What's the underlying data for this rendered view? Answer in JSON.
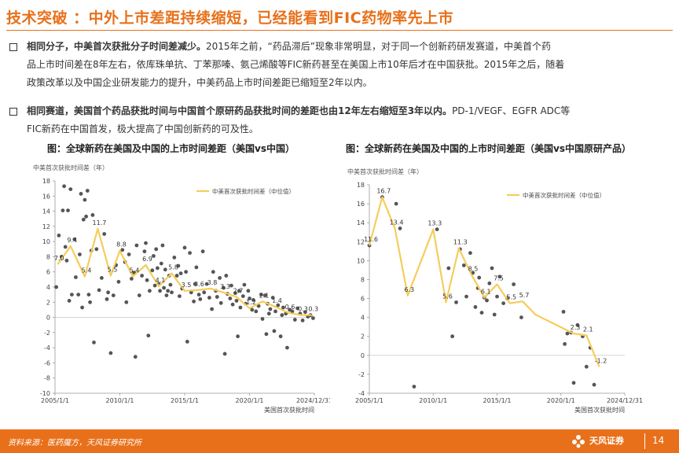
{
  "slide": {
    "title": "技术突破 ：中外上市差距持续缩短，已经能看到FIC药物率先上市",
    "bullets": [
      {
        "bold": "相同分子，中美首次获批分子时间差减少。",
        "line1": "2015年之前，“药品滞后”现象非常明显，对于同一个创新药研发赛道，中美首个药",
        "line2": "品上市时间差在8年左右，依库珠单抗、丁苯那嗪、氨己烯酸等FIC新药甚至在美国上市10年后才在中国获批。2015年之后，随着",
        "line3": "政策改革以及中国企业研发能力的提升，中美药品上市时间差距已缩短至2年以内。"
      },
      {
        "bold": "相同赛道，美国首个药品获批时间与中国首个原研药品获批时间的差距也由12年左右缩短至3年以内。",
        "line1": "PD-1/VEGF、EGFR ADC等",
        "line2": "FIC新药在中国首发，极大提高了中国创新药的可及性。"
      }
    ],
    "source": "资料来源：医药魔方，天风证券研究所",
    "brand": "天风证券",
    "page": "14"
  },
  "colors": {
    "accent": "#e8701a",
    "line": "#f5cd5b",
    "dots": "#555555"
  },
  "chart_data": [
    {
      "type": "scatter",
      "title": "图：全球新药在美国及中国的上市时间差距（美国vs中国）",
      "ylabel": "中美首次获批时间差（年）",
      "xlabel": "美国首次获批时间",
      "xticks": [
        "2005/1/1",
        "2010/1/1",
        "2015/1/1",
        "2020/1/1",
        "2024/12/31"
      ],
      "xlim": [
        2005.0,
        2025.0
      ],
      "yticks": [
        -10,
        -8,
        -6,
        -4,
        -2,
        0,
        2,
        4,
        6,
        8,
        10,
        12,
        14,
        16,
        18
      ],
      "ylim": [
        -10,
        18
      ],
      "legend": "中美首次获批时间差（中位值）",
      "legend_position": "top-right",
      "median_series": {
        "x": [
          2005.2,
          2006.2,
          2007.3,
          2008.3,
          2009.3,
          2010.0,
          2011.0,
          2012.0,
          2013.0,
          2014.0,
          2015.0,
          2016.0,
          2017.0,
          2018.0,
          2019.0,
          2020.0,
          2021.0,
          2022.0,
          2023.0,
          2024.0,
          2024.8
        ],
        "y": [
          7.0,
          9.4,
          5.4,
          11.7,
          5.5,
          8.8,
          5.4,
          6.9,
          4.1,
          5.8,
          3.5,
          3.6,
          3.8,
          3.3,
          2.7,
          1.2,
          2.1,
          1.4,
          0.6,
          0.3,
          0.3
        ],
        "labels": [
          "7.0",
          "9.4",
          "5.4",
          "11.7",
          "5.5",
          "8.8",
          "5.4",
          "6.9",
          "4.1",
          "5.8",
          "3.5",
          "3.6",
          "3.8",
          "3.3",
          "2.7",
          "1.2",
          "2.1",
          "1.4",
          "0.6",
          "0.3",
          "0.3"
        ]
      },
      "points": [
        [
          2005.1,
          4.0
        ],
        [
          2005.3,
          10.8
        ],
        [
          2005.5,
          8.0
        ],
        [
          2005.6,
          14.1
        ],
        [
          2005.7,
          17.3
        ],
        [
          2005.8,
          9.3
        ],
        [
          2005.9,
          7.5
        ],
        [
          2006.0,
          14.1
        ],
        [
          2006.1,
          2.2
        ],
        [
          2006.2,
          16.9
        ],
        [
          2006.3,
          3.0
        ],
        [
          2006.5,
          10.3
        ],
        [
          2006.6,
          5.3
        ],
        [
          2006.8,
          3.0
        ],
        [
          2006.9,
          8.3
        ],
        [
          2007.0,
          16.3
        ],
        [
          2007.1,
          1.3
        ],
        [
          2007.2,
          12.9
        ],
        [
          2007.3,
          15.5
        ],
        [
          2007.4,
          13.3
        ],
        [
          2007.5,
          16.7
        ],
        [
          2007.6,
          3.0
        ],
        [
          2007.7,
          2.0
        ],
        [
          2007.8,
          8.8
        ],
        [
          2007.9,
          13.5
        ],
        [
          2008.0,
          -3.3
        ],
        [
          2008.2,
          9.0
        ],
        [
          2008.4,
          3.6
        ],
        [
          2008.6,
          5.2
        ],
        [
          2008.8,
          11.0
        ],
        [
          2009.0,
          2.4
        ],
        [
          2009.1,
          3.3
        ],
        [
          2009.3,
          -4.7
        ],
        [
          2009.5,
          2.9
        ],
        [
          2009.7,
          6.9
        ],
        [
          2009.9,
          4.7
        ],
        [
          2010.2,
          8.9
        ],
        [
          2010.4,
          7.3
        ],
        [
          2010.5,
          2.0
        ],
        [
          2010.7,
          8.3
        ],
        [
          2010.9,
          5.1
        ],
        [
          2011.1,
          5.9
        ],
        [
          2011.2,
          -5.2
        ],
        [
          2011.3,
          9.5
        ],
        [
          2011.5,
          2.9
        ],
        [
          2011.7,
          5.5
        ],
        [
          2011.9,
          8.7
        ],
        [
          2012.0,
          9.8
        ],
        [
          2012.1,
          4.9
        ],
        [
          2012.2,
          -2.4
        ],
        [
          2012.3,
          3.5
        ],
        [
          2012.5,
          6.2
        ],
        [
          2012.6,
          8.1
        ],
        [
          2012.7,
          4.2
        ],
        [
          2012.8,
          9.0
        ],
        [
          2012.9,
          6.5
        ],
        [
          2013.0,
          4.4
        ],
        [
          2013.1,
          3.5
        ],
        [
          2013.2,
          7.1
        ],
        [
          2013.3,
          9.5
        ],
        [
          2013.4,
          3.9
        ],
        [
          2013.5,
          6.3
        ],
        [
          2013.6,
          2.9
        ],
        [
          2013.7,
          3.5
        ],
        [
          2013.8,
          5.5
        ],
        [
          2013.9,
          4.3
        ],
        [
          2014.0,
          3.3
        ],
        [
          2014.2,
          7.9
        ],
        [
          2014.4,
          5.5
        ],
        [
          2014.5,
          6.8
        ],
        [
          2014.6,
          2.8
        ],
        [
          2014.7,
          5.8
        ],
        [
          2014.8,
          3.8
        ],
        [
          2015.0,
          9.2
        ],
        [
          2015.1,
          6.0
        ],
        [
          2015.2,
          -3.2
        ],
        [
          2015.4,
          8.5
        ],
        [
          2015.5,
          3.3
        ],
        [
          2015.7,
          2.1
        ],
        [
          2015.8,
          4.4
        ],
        [
          2015.9,
          6.6
        ],
        [
          2016.1,
          3.0
        ],
        [
          2016.2,
          2.4
        ],
        [
          2016.4,
          8.7
        ],
        [
          2016.5,
          3.3
        ],
        [
          2016.7,
          4.4
        ],
        [
          2016.9,
          2.6
        ],
        [
          2017.1,
          1.1
        ],
        [
          2017.2,
          6.0
        ],
        [
          2017.4,
          3.5
        ],
        [
          2017.5,
          2.7
        ],
        [
          2017.7,
          5.2
        ],
        [
          2017.8,
          1.9
        ],
        [
          2018.0,
          3.9
        ],
        [
          2018.1,
          -4.8
        ],
        [
          2018.2,
          5.5
        ],
        [
          2018.3,
          3.1
        ],
        [
          2018.5,
          2.5
        ],
        [
          2018.6,
          4.2
        ],
        [
          2018.7,
          1.7
        ],
        [
          2018.9,
          3.2
        ],
        [
          2019.0,
          2.2
        ],
        [
          2019.1,
          -2.5
        ],
        [
          2019.2,
          3.5
        ],
        [
          2019.3,
          1.3
        ],
        [
          2019.5,
          2.8
        ],
        [
          2019.6,
          4.3
        ],
        [
          2019.7,
          1.8
        ],
        [
          2019.9,
          3.5
        ],
        [
          2020.0,
          2.5
        ],
        [
          2020.2,
          1.0
        ],
        [
          2020.3,
          2.3
        ],
        [
          2020.5,
          0.8
        ],
        [
          2020.7,
          1.5
        ],
        [
          2020.9,
          3.0
        ],
        [
          2021.0,
          -0.2
        ],
        [
          2021.2,
          2.9
        ],
        [
          2021.3,
          -2.2
        ],
        [
          2021.4,
          1.8
        ],
        [
          2021.5,
          0.5
        ],
        [
          2021.6,
          1.1
        ],
        [
          2021.8,
          2.6
        ],
        [
          2021.9,
          -1.8
        ],
        [
          2022.0,
          0.8
        ],
        [
          2022.2,
          1.6
        ],
        [
          2022.4,
          -2.5
        ],
        [
          2022.5,
          0.3
        ],
        [
          2022.6,
          1.3
        ],
        [
          2022.8,
          0.5
        ],
        [
          2022.9,
          -4.0
        ],
        [
          2023.1,
          1.0
        ],
        [
          2023.3,
          0.8
        ],
        [
          2023.5,
          -0.3
        ],
        [
          2023.7,
          1.2
        ],
        [
          2023.9,
          0.5
        ],
        [
          2024.1,
          -0.4
        ],
        [
          2024.3,
          0.7
        ],
        [
          2024.5,
          0.1
        ],
        [
          2024.7,
          0.3
        ],
        [
          2024.9,
          -0.1
        ]
      ]
    },
    {
      "type": "scatter",
      "title": "图：全球新药在美国及中国的上市时间差距（美国vs中国原研产品）",
      "ylabel": "中美首次获批时间差（年）",
      "xlabel": "美国首次获批时间",
      "xticks": [
        "2005/1/1",
        "2010/1/1",
        "2015/1/1",
        "2020/1/1",
        "2024/12/31"
      ],
      "xlim": [
        2005.0,
        2025.0
      ],
      "yticks": [
        -4,
        -2,
        0,
        2,
        4,
        6,
        8,
        10,
        12,
        14,
        16,
        18
      ],
      "ylim": [
        -4,
        18
      ],
      "legend": "中美首次获批时间差（中位值）",
      "legend_position": "top-right",
      "median_series": {
        "x": [
          2005.0,
          2006.0,
          2007.0,
          2008.0,
          2009.0,
          2010.0,
          2011.0,
          2012.0,
          2013.0,
          2014.0,
          2015.0,
          2016.0,
          2017.0,
          2018.0,
          2021.0,
          2022.0,
          2023.0
        ],
        "y": [
          11.6,
          16.7,
          13.4,
          6.3,
          9.8,
          13.3,
          5.6,
          11.3,
          8.5,
          6.1,
          7.5,
          5.5,
          5.7,
          4.3,
          2.3,
          2.1,
          -1.2
        ],
        "labels": [
          "11.6",
          "16.7",
          "13.4",
          "6.3",
          "",
          "13.3",
          "5.6",
          "11.3",
          "8.5",
          "6.1",
          "7.5",
          "5.5",
          "5.7",
          "",
          "2.3",
          "2.1",
          "-1.2"
        ]
      },
      "points": [
        [
          2005.0,
          11.6
        ],
        [
          2006.0,
          16.7
        ],
        [
          2007.1,
          16.0
        ],
        [
          2007.4,
          13.4
        ],
        [
          2008.5,
          -3.3
        ],
        [
          2010.3,
          13.3
        ],
        [
          2011.2,
          9.2
        ],
        [
          2011.5,
          2.0
        ],
        [
          2011.8,
          5.6
        ],
        [
          2012.1,
          11.2
        ],
        [
          2012.4,
          9.5
        ],
        [
          2012.6,
          6.2
        ],
        [
          2012.9,
          10.8
        ],
        [
          2013.1,
          8.7
        ],
        [
          2013.3,
          5.1
        ],
        [
          2013.5,
          7.1
        ],
        [
          2013.6,
          8.2
        ],
        [
          2013.8,
          4.5
        ],
        [
          2014.0,
          6.1
        ],
        [
          2014.2,
          5.8
        ],
        [
          2014.4,
          7.6
        ],
        [
          2014.6,
          9.2
        ],
        [
          2014.8,
          4.3
        ],
        [
          2015.0,
          6.2
        ],
        [
          2015.2,
          8.3
        ],
        [
          2015.5,
          5.5
        ],
        [
          2015.8,
          6.0
        ],
        [
          2016.3,
          7.5
        ],
        [
          2016.9,
          4.0
        ],
        [
          2020.2,
          4.6
        ],
        [
          2020.3,
          1.2
        ],
        [
          2020.5,
          2.3
        ],
        [
          2020.8,
          2.4
        ],
        [
          2021.0,
          -2.9
        ],
        [
          2021.3,
          3.2
        ],
        [
          2021.7,
          2.0
        ],
        [
          2022.0,
          -1.2
        ],
        [
          2022.3,
          0.8
        ],
        [
          2022.6,
          -3.1
        ]
      ]
    }
  ]
}
